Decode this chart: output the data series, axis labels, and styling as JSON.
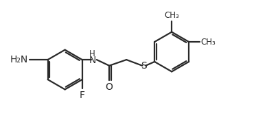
{
  "bg_color": "#ffffff",
  "line_color": "#2a2a2a",
  "line_width": 1.6,
  "dbo": 0.055,
  "font_size": 10,
  "figsize": [
    4.06,
    1.91
  ],
  "dpi": 100,
  "xlim": [
    -3.8,
    4.6
  ],
  "ylim": [
    -1.35,
    1.5
  ]
}
